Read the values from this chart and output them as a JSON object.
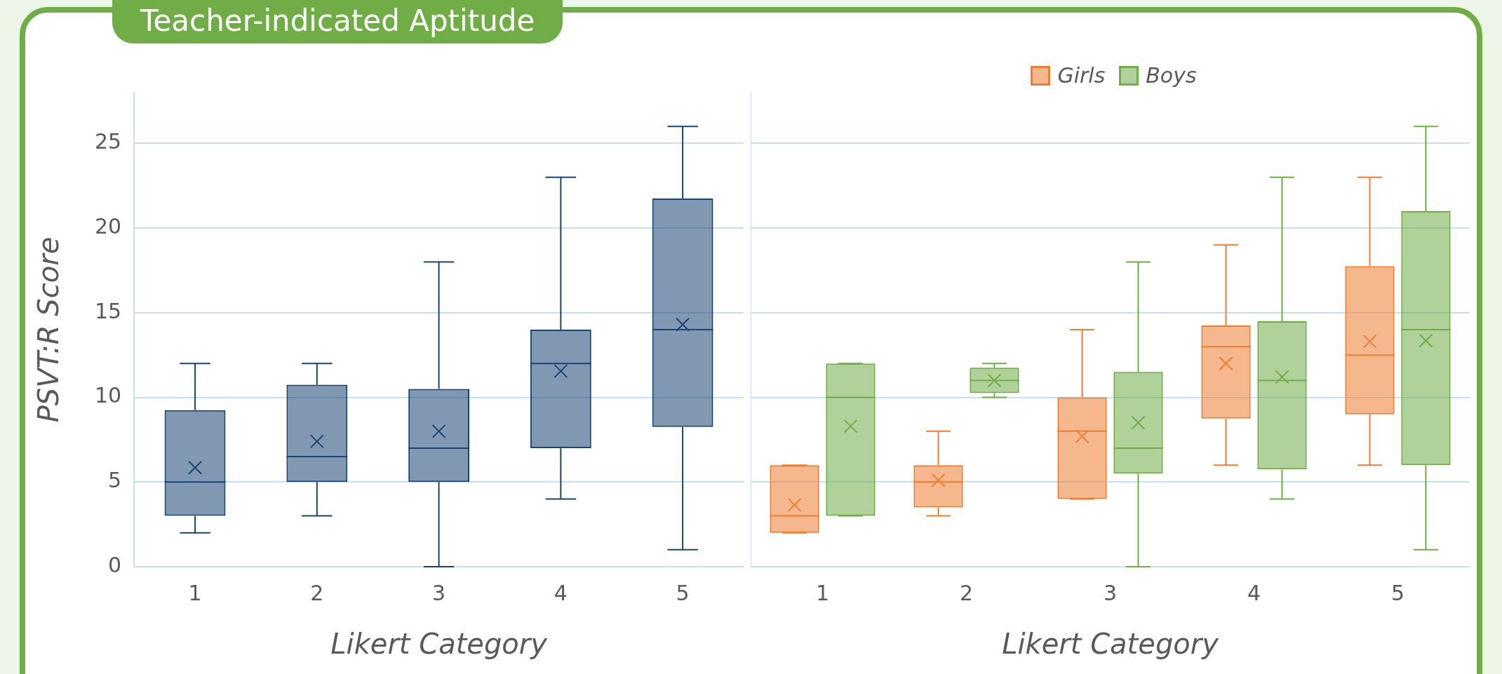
{
  "chart_data": [
    {
      "type": "box",
      "title": "Teacher-indicated Aptitude",
      "xlabel": "Likert Category",
      "ylabel": "PSVT:R Score",
      "categories": [
        "1",
        "2",
        "3",
        "4",
        "5"
      ],
      "color": "#1a4472",
      "ylim": [
        0,
        28
      ],
      "yticks": [
        0,
        5,
        10,
        15,
        20,
        25
      ],
      "grid": "y",
      "boxes": [
        {
          "low": 2,
          "q1": 3,
          "median": 5,
          "q3": 9.25,
          "high": 12,
          "mean": 5.85
        },
        {
          "low": 3,
          "q1": 5,
          "median": 6.5,
          "q3": 10.75,
          "high": 12,
          "mean": 7.4
        },
        {
          "low": 0,
          "q1": 5,
          "median": 7,
          "q3": 10.5,
          "high": 18,
          "mean": 8
        },
        {
          "low": 4,
          "q1": 7,
          "median": 12,
          "q3": 14,
          "high": 23,
          "mean": 11.55
        },
        {
          "low": 1,
          "q1": 8.25,
          "median": 14,
          "q3": 21.75,
          "high": 26,
          "mean": 14.3
        }
      ]
    },
    {
      "type": "box",
      "xlabel": "Likert Category",
      "categories": [
        "1",
        "2",
        "3",
        "4",
        "5"
      ],
      "ylim": [
        0,
        28
      ],
      "yticks": [
        0,
        5,
        10,
        15,
        20,
        25
      ],
      "grid": "y",
      "tick_labels": "x",
      "legend": "top",
      "series": [
        {
          "name": "Girls",
          "color": "#ed7d31",
          "boxes": [
            {
              "low": 2,
              "q1": 2,
              "median": 3,
              "q3": 6,
              "high": 6,
              "mean": 3.65
            },
            {
              "low": 3,
              "q1": 3.5,
              "median": 5,
              "q3": 6,
              "high": 8,
              "mean": 5.1
            },
            {
              "low": 4,
              "q1": 4,
              "median": 8,
              "q3": 10,
              "high": 14,
              "mean": 7.7
            },
            {
              "low": 6,
              "q1": 8.75,
              "median": 13,
              "q3": 14.25,
              "high": 19,
              "mean": 12
            },
            {
              "low": 6,
              "q1": 9,
              "median": 12.5,
              "q3": 17.75,
              "high": 23,
              "mean": 13.3
            }
          ]
        },
        {
          "name": "Boys",
          "color": "#70ad47",
          "boxes": [
            {
              "low": 3,
              "q1": 3,
              "median": 10,
              "q3": 12,
              "high": 12,
              "mean": 8.3
            },
            {
              "low": 10,
              "q1": 10.25,
              "median": 11,
              "q3": 11.75,
              "high": 12,
              "mean": 11
            },
            {
              "low": 0,
              "q1": 5.5,
              "median": 7,
              "q3": 11.5,
              "high": 18,
              "mean": 8.5
            },
            {
              "low": 4,
              "q1": 5.75,
              "median": 11,
              "q3": 14.5,
              "high": 23,
              "mean": 11.2
            },
            {
              "low": 1,
              "q1": 6,
              "median": 14,
              "q3": 21,
              "high": 26,
              "mean": 13.35
            }
          ]
        }
      ]
    }
  ]
}
